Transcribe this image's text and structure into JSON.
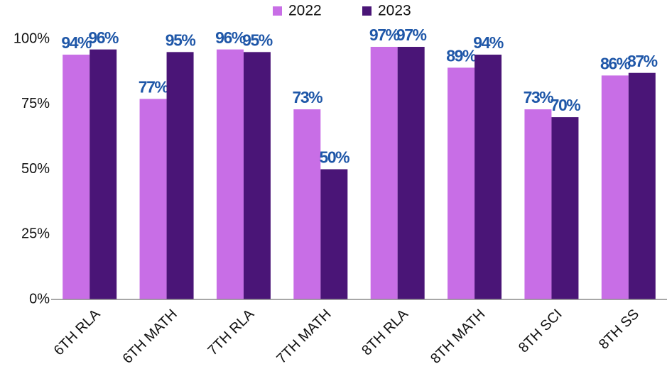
{
  "chart_data": {
    "type": "bar",
    "categories": [
      "6TH RLA",
      "6TH MATH",
      "7TH RLA",
      "7TH MATH",
      "8TH RLA",
      "8TH MATH",
      "8TH SCI",
      "8TH SS"
    ],
    "series": [
      {
        "name": "2022",
        "color": "#c86ee6",
        "values": [
          94,
          77,
          96,
          73,
          97,
          89,
          73,
          86
        ],
        "value_labels": [
          "94%",
          "77%",
          "96%",
          "73%",
          "97%",
          "89%",
          "73%",
          "86%"
        ]
      },
      {
        "name": "2023",
        "color": "#4a1577",
        "values": [
          96,
          95,
          95,
          50,
          97,
          94,
          70,
          87
        ],
        "value_labels": [
          "96%",
          "95%",
          "95%",
          "50%",
          "97%",
          "94%",
          "70%",
          "87%"
        ]
      }
    ],
    "ylim": [
      0,
      100
    ],
    "yticks": [
      {
        "value": 0,
        "label": "0%"
      },
      {
        "value": 25,
        "label": "25%"
      },
      {
        "value": 50,
        "label": "50%"
      },
      {
        "value": 75,
        "label": "75%"
      },
      {
        "value": 100,
        "label": "100%"
      }
    ],
    "grid": false,
    "legend": "top"
  }
}
